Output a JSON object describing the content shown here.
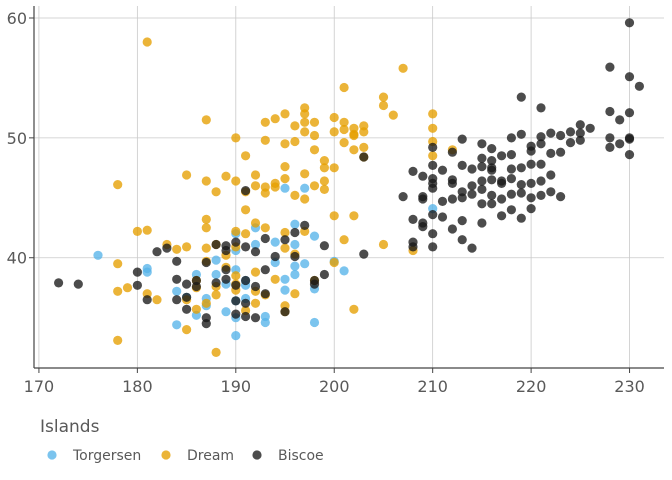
{
  "chart_data": {
    "type": "scatter",
    "title": "",
    "xlabel": "",
    "ylabel": "",
    "xlim": [
      169.5,
      233.5
    ],
    "ylim": [
      30.8,
      61.0
    ],
    "x_ticks": [
      170,
      180,
      190,
      200,
      210,
      220,
      230
    ],
    "x_tick_labels": [
      "170",
      "180",
      "190",
      "200",
      "210",
      "220",
      "230"
    ],
    "y_ticks": [
      40,
      50,
      60
    ],
    "y_tick_labels": [
      "40",
      "50",
      "60"
    ],
    "grid": true,
    "legend": {
      "title": "Islands",
      "position": "bottom-left"
    },
    "series": [
      {
        "name": "Torgersen",
        "color": "#56B4E9",
        "points": [
          [
            176,
            40.2
          ],
          [
            181,
            38.8
          ],
          [
            181,
            39.1
          ],
          [
            184,
            34.4
          ],
          [
            184,
            37.2
          ],
          [
            185,
            36.7
          ],
          [
            186,
            35.2
          ],
          [
            186,
            38.6
          ],
          [
            187,
            36.6
          ],
          [
            187,
            36.0
          ],
          [
            188,
            38.6
          ],
          [
            188,
            39.8
          ],
          [
            189,
            37.8
          ],
          [
            189,
            35.5
          ],
          [
            190,
            35.0
          ],
          [
            190,
            39.0
          ],
          [
            190,
            40.6
          ],
          [
            190,
            33.5
          ],
          [
            190,
            36.4
          ],
          [
            190,
            42.0
          ],
          [
            191,
            37.7
          ],
          [
            191,
            38.1
          ],
          [
            191,
            36.6
          ],
          [
            192,
            42.5
          ],
          [
            192,
            41.1
          ],
          [
            193,
            35.1
          ],
          [
            193,
            34.6
          ],
          [
            194,
            39.6
          ],
          [
            194,
            41.3
          ],
          [
            195,
            37.3
          ],
          [
            195,
            38.2
          ],
          [
            195,
            45.8
          ],
          [
            196,
            41.1
          ],
          [
            196,
            38.6
          ],
          [
            196,
            39.3
          ],
          [
            196,
            42.8
          ],
          [
            197,
            39.5
          ],
          [
            197,
            45.8
          ],
          [
            198,
            41.8
          ],
          [
            198,
            37.4
          ],
          [
            198,
            34.6
          ],
          [
            200,
            39.7
          ],
          [
            201,
            38.9
          ],
          [
            210,
            44.1
          ]
        ]
      },
      {
        "name": "Dream",
        "color": "#E69F00",
        "points": [
          [
            178,
            46.1
          ],
          [
            181,
            58.0
          ],
          [
            181,
            42.3
          ],
          [
            178,
            39.5
          ],
          [
            178,
            37.2
          ],
          [
            178,
            33.1
          ],
          [
            179,
            37.5
          ],
          [
            180,
            42.2
          ],
          [
            181,
            37.0
          ],
          [
            182,
            36.5
          ],
          [
            183,
            41.1
          ],
          [
            184,
            40.7
          ],
          [
            185,
            36.5
          ],
          [
            185,
            40.9
          ],
          [
            185,
            46.9
          ],
          [
            185,
            34.0
          ],
          [
            186,
            37.5
          ],
          [
            186,
            35.7
          ],
          [
            186,
            38.1
          ],
          [
            187,
            36.2
          ],
          [
            187,
            42.5
          ],
          [
            187,
            43.2
          ],
          [
            187,
            51.5
          ],
          [
            187,
            46.4
          ],
          [
            187,
            40.8
          ],
          [
            187,
            39.7
          ],
          [
            188,
            37.6
          ],
          [
            188,
            36.9
          ],
          [
            188,
            32.1
          ],
          [
            188,
            41.1
          ],
          [
            188,
            45.5
          ],
          [
            189,
            46.8
          ],
          [
            189,
            39.2
          ],
          [
            189,
            40.2
          ],
          [
            190,
            50.0
          ],
          [
            190,
            46.4
          ],
          [
            190,
            42.2
          ],
          [
            190,
            38.5
          ],
          [
            190,
            37.3
          ],
          [
            190,
            40.9
          ],
          [
            190,
            37.8
          ],
          [
            191,
            48.5
          ],
          [
            191,
            45.5
          ],
          [
            191,
            44.0
          ],
          [
            191,
            42.0
          ],
          [
            191,
            35.6
          ],
          [
            192,
            46.9
          ],
          [
            192,
            46.0
          ],
          [
            192,
            42.9
          ],
          [
            192,
            38.8
          ],
          [
            192,
            37.2
          ],
          [
            192,
            36.2
          ],
          [
            193,
            51.3
          ],
          [
            193,
            49.8
          ],
          [
            193,
            45.9
          ],
          [
            193,
            45.4
          ],
          [
            193,
            42.5
          ],
          [
            193,
            36.9
          ],
          [
            194,
            51.6
          ],
          [
            194,
            46.2
          ],
          [
            194,
            45.9
          ],
          [
            194,
            38.2
          ],
          [
            195,
            52.0
          ],
          [
            195,
            49.5
          ],
          [
            195,
            47.6
          ],
          [
            195,
            46.6
          ],
          [
            195,
            42.1
          ],
          [
            195,
            40.8
          ],
          [
            195,
            36.0
          ],
          [
            195,
            35.5
          ],
          [
            196,
            51.0
          ],
          [
            196,
            49.7
          ],
          [
            196,
            45.2
          ],
          [
            196,
            40.3
          ],
          [
            196,
            37.0
          ],
          [
            197,
            52.5
          ],
          [
            197,
            52.0
          ],
          [
            197,
            51.3
          ],
          [
            197,
            50.5
          ],
          [
            197,
            47.0
          ],
          [
            197,
            44.9
          ],
          [
            197,
            42.2
          ],
          [
            198,
            51.3
          ],
          [
            198,
            50.2
          ],
          [
            198,
            49.0
          ],
          [
            198,
            46.0
          ],
          [
            198,
            38.1
          ],
          [
            199,
            48.1
          ],
          [
            199,
            46.4
          ],
          [
            199,
            45.7
          ],
          [
            199,
            47.5
          ],
          [
            200,
            51.7
          ],
          [
            200,
            50.5
          ],
          [
            200,
            47.5
          ],
          [
            200,
            43.5
          ],
          [
            200,
            39.6
          ],
          [
            201,
            54.2
          ],
          [
            201,
            51.3
          ],
          [
            201,
            50.7
          ],
          [
            201,
            49.6
          ],
          [
            201,
            41.5
          ],
          [
            202,
            50.8
          ],
          [
            202,
            50.3
          ],
          [
            202,
            50.2
          ],
          [
            202,
            49.0
          ],
          [
            202,
            43.5
          ],
          [
            202,
            35.7
          ],
          [
            203,
            51.0
          ],
          [
            203,
            50.5
          ],
          [
            203,
            49.2
          ],
          [
            203,
            48.4
          ],
          [
            205,
            53.4
          ],
          [
            205,
            52.7
          ],
          [
            205,
            41.1
          ],
          [
            206,
            51.9
          ],
          [
            207,
            55.8
          ],
          [
            208,
            40.6
          ],
          [
            210,
            52.0
          ],
          [
            210,
            50.8
          ],
          [
            210,
            49.7
          ],
          [
            210,
            48.5
          ],
          [
            212,
            49.0
          ]
        ]
      },
      {
        "name": "Biscoe",
        "color": "#1A1A1A",
        "points": [
          [
            172,
            37.9
          ],
          [
            174,
            37.8
          ],
          [
            180,
            38.8
          ],
          [
            180,
            37.7
          ],
          [
            181,
            36.5
          ],
          [
            182,
            40.5
          ],
          [
            183,
            40.8
          ],
          [
            184,
            39.7
          ],
          [
            184,
            38.2
          ],
          [
            184,
            36.5
          ],
          [
            185,
            37.8
          ],
          [
            185,
            35.7
          ],
          [
            185,
            36.7
          ],
          [
            186,
            38.1
          ],
          [
            186,
            37.6
          ],
          [
            187,
            39.6
          ],
          [
            187,
            35.0
          ],
          [
            187,
            34.5
          ],
          [
            188,
            41.1
          ],
          [
            188,
            37.9
          ],
          [
            189,
            39.0
          ],
          [
            189,
            41.0
          ],
          [
            189,
            40.6
          ],
          [
            189,
            38.2
          ],
          [
            190,
            35.3
          ],
          [
            190,
            36.4
          ],
          [
            190,
            37.7
          ],
          [
            190,
            41.3
          ],
          [
            191,
            36.2
          ],
          [
            191,
            38.1
          ],
          [
            191,
            40.9
          ],
          [
            191,
            45.6
          ],
          [
            191,
            35.1
          ],
          [
            192,
            40.5
          ],
          [
            192,
            37.6
          ],
          [
            192,
            35.0
          ],
          [
            193,
            41.6
          ],
          [
            193,
            39.0
          ],
          [
            193,
            37.0
          ],
          [
            194,
            40.1
          ],
          [
            195,
            41.5
          ],
          [
            195,
            35.5
          ],
          [
            196,
            42.1
          ],
          [
            196,
            40.1
          ],
          [
            197,
            42.7
          ],
          [
            198,
            38.1
          ],
          [
            198,
            37.8
          ],
          [
            199,
            38.6
          ],
          [
            199,
            41.0
          ],
          [
            203,
            40.3
          ],
          [
            203,
            48.4
          ],
          [
            207,
            45.1
          ],
          [
            208,
            47.2
          ],
          [
            208,
            43.2
          ],
          [
            208,
            41.3
          ],
          [
            208,
            40.9
          ],
          [
            209,
            46.8
          ],
          [
            209,
            45.1
          ],
          [
            209,
            44.9
          ],
          [
            209,
            42.9
          ],
          [
            209,
            42.6
          ],
          [
            210,
            49.2
          ],
          [
            210,
            47.7
          ],
          [
            210,
            45.8
          ],
          [
            210,
            46.6
          ],
          [
            210,
            43.6
          ],
          [
            210,
            40.9
          ],
          [
            210,
            46.2
          ],
          [
            210,
            42.0
          ],
          [
            211,
            47.3
          ],
          [
            211,
            44.7
          ],
          [
            211,
            43.4
          ],
          [
            212,
            48.8
          ],
          [
            212,
            46.2
          ],
          [
            212,
            42.4
          ],
          [
            212,
            44.9
          ],
          [
            212,
            46.5
          ],
          [
            213,
            49.9
          ],
          [
            213,
            47.7
          ],
          [
            213,
            45.0
          ],
          [
            213,
            43.1
          ],
          [
            213,
            41.5
          ],
          [
            213,
            45.5
          ],
          [
            214,
            46.0
          ],
          [
            214,
            45.3
          ],
          [
            214,
            40.8
          ],
          [
            214,
            47.4
          ],
          [
            215,
            49.5
          ],
          [
            215,
            47.6
          ],
          [
            215,
            46.4
          ],
          [
            215,
            45.7
          ],
          [
            215,
            44.5
          ],
          [
            215,
            48.3
          ],
          [
            215,
            42.9
          ],
          [
            216,
            49.1
          ],
          [
            216,
            47.5
          ],
          [
            216,
            46.5
          ],
          [
            216,
            45.2
          ],
          [
            216,
            44.5
          ],
          [
            216,
            48.1
          ],
          [
            216,
            47.3
          ],
          [
            217,
            48.5
          ],
          [
            217,
            46.2
          ],
          [
            217,
            44.9
          ],
          [
            217,
            43.5
          ],
          [
            217,
            46.4
          ],
          [
            218,
            50.0
          ],
          [
            218,
            48.6
          ],
          [
            218,
            46.6
          ],
          [
            218,
            44.0
          ],
          [
            218,
            45.3
          ],
          [
            218,
            47.4
          ],
          [
            219,
            53.4
          ],
          [
            219,
            50.3
          ],
          [
            219,
            47.5
          ],
          [
            219,
            45.4
          ],
          [
            219,
            43.3
          ],
          [
            219,
            46.1
          ],
          [
            220,
            48.9
          ],
          [
            220,
            47.8
          ],
          [
            220,
            46.2
          ],
          [
            220,
            45.0
          ],
          [
            220,
            44.1
          ],
          [
            220,
            49.3
          ],
          [
            221,
            52.5
          ],
          [
            221,
            50.1
          ],
          [
            221,
            47.8
          ],
          [
            221,
            46.4
          ],
          [
            221,
            45.2
          ],
          [
            221,
            49.5
          ],
          [
            222,
            50.4
          ],
          [
            222,
            48.7
          ],
          [
            222,
            46.9
          ],
          [
            222,
            45.5
          ],
          [
            223,
            50.2
          ],
          [
            223,
            48.8
          ],
          [
            223,
            45.1
          ],
          [
            224,
            50.5
          ],
          [
            224,
            49.6
          ],
          [
            225,
            51.1
          ],
          [
            225,
            50.4
          ],
          [
            225,
            49.8
          ],
          [
            226,
            50.8
          ],
          [
            228,
            55.9
          ],
          [
            228,
            52.2
          ],
          [
            228,
            49.2
          ],
          [
            228,
            50.0
          ],
          [
            229,
            51.5
          ],
          [
            229,
            49.5
          ],
          [
            230,
            59.6
          ],
          [
            230,
            55.1
          ],
          [
            230,
            52.1
          ],
          [
            230,
            50.0
          ],
          [
            230,
            48.6
          ],
          [
            230,
            49.9
          ],
          [
            231,
            54.3
          ]
        ]
      }
    ]
  }
}
